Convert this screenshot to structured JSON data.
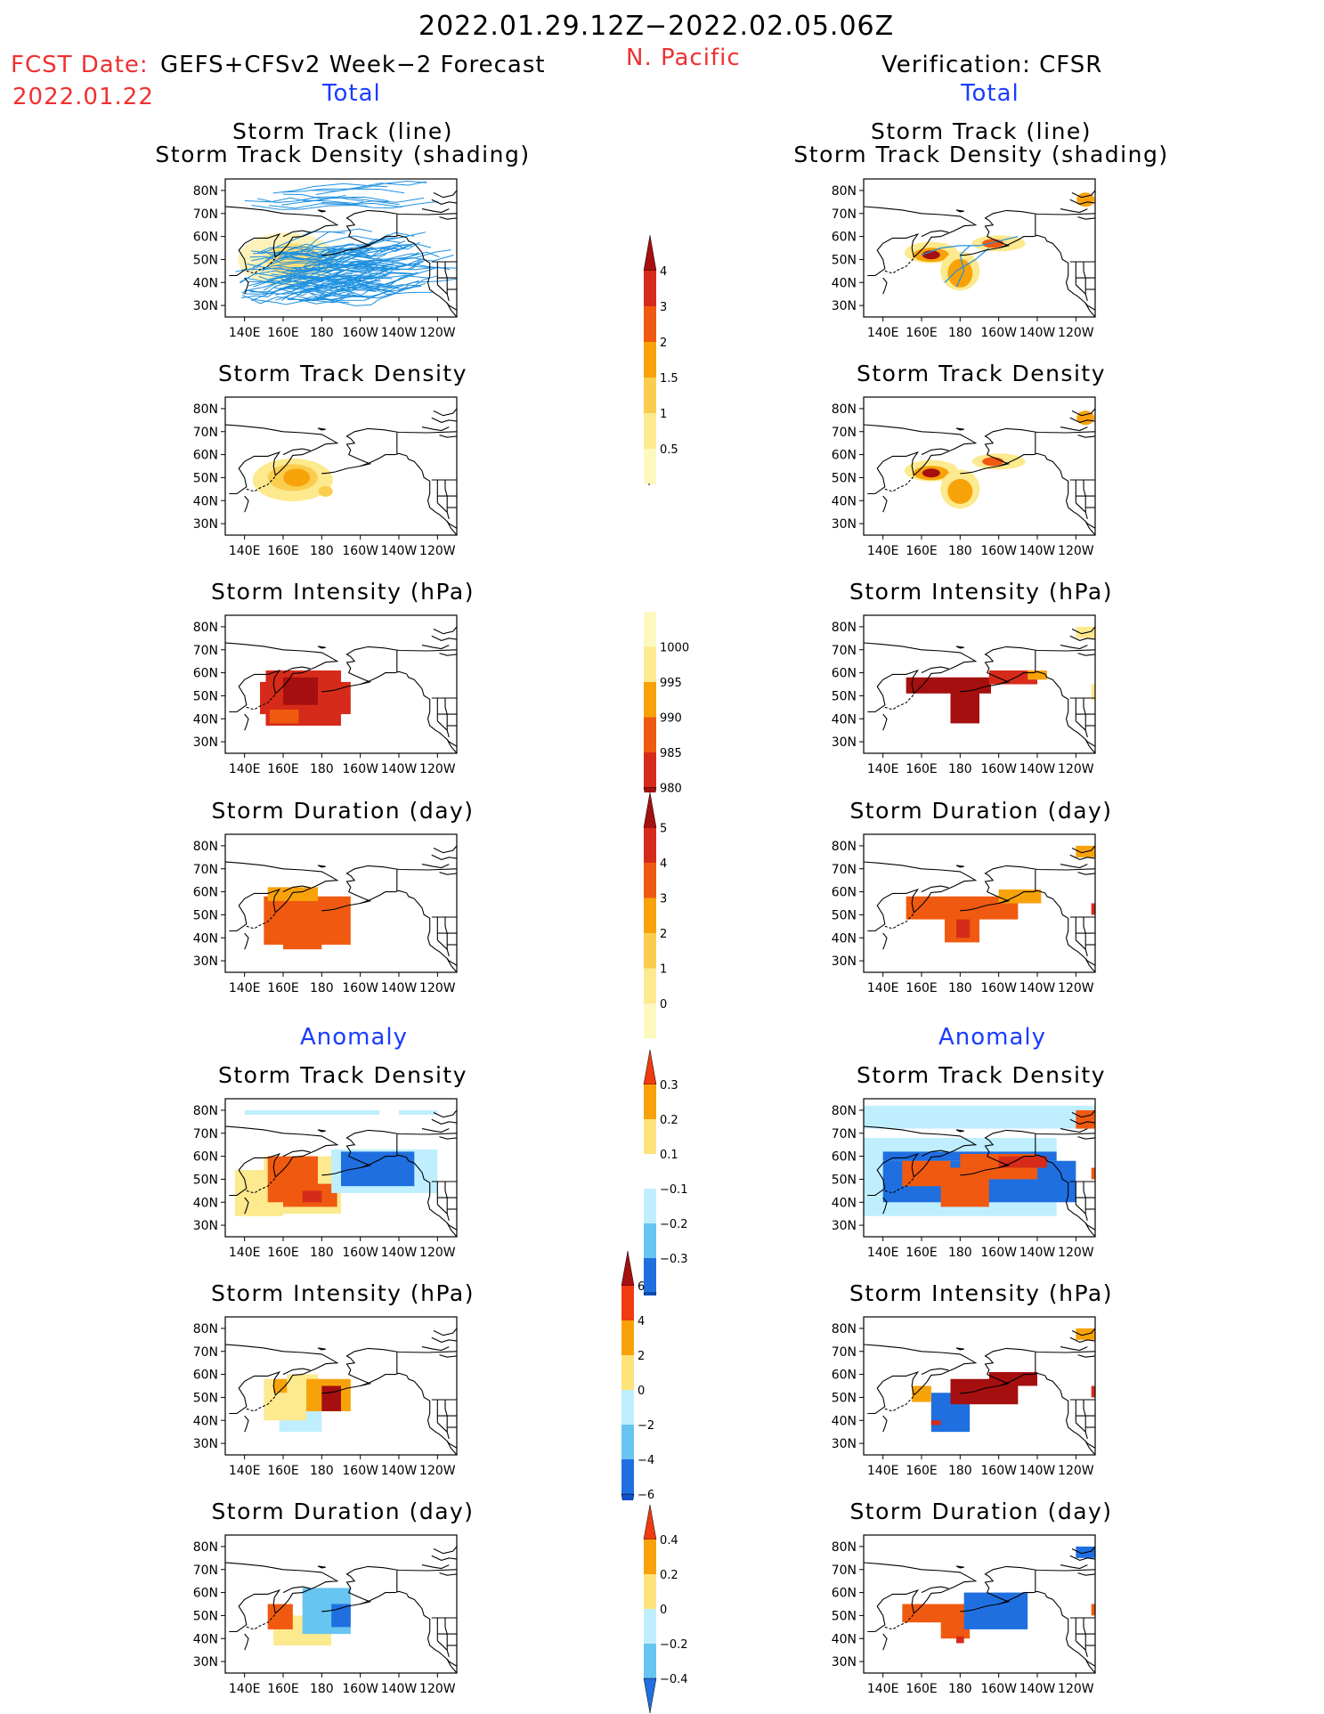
{
  "header": {
    "date_range": "2022.01.29.12Z−2022.02.05.06Z",
    "region": "N. Pacific",
    "fcst_label": "FCST Date:",
    "fcst_model": "GEFS+CFSv2 Week−2 Forecast",
    "fcst_date": "2022.01.22",
    "verification": "Verification: CFSR",
    "total_left": "Total",
    "total_right": "Total",
    "anomaly_left": "Anomaly",
    "anomaly_right": "Anomaly"
  },
  "panel_titles": {
    "track_line": "Storm Track (line)",
    "track_density_shading": "Storm Track Density (shading)",
    "track_density": "Storm Track Density",
    "intensity": "Storm Intensity (hPa)",
    "duration": "Storm Duration (day)"
  },
  "axes": {
    "lat_labels": [
      "80N",
      "70N",
      "60N",
      "50N",
      "40N",
      "30N"
    ],
    "lon_labels": [
      "140E",
      "160E",
      "180",
      "160W",
      "140W",
      "120W"
    ]
  },
  "colorbars": {
    "density_total": {
      "labels": [
        "4",
        "3",
        "2",
        "1.5",
        "1",
        "0.5"
      ],
      "colors": [
        "#a50f0f",
        "#d62b1a",
        "#f05a10",
        "#f8a20a",
        "#fbcd4e",
        "#fde98e",
        "#fdf8c0"
      ]
    },
    "intensity_total": {
      "labels": [
        "1000",
        "995",
        "990",
        "985",
        "980"
      ],
      "colors": [
        "#fdf8c0",
        "#fde98e",
        "#f8a20a",
        "#f05a10",
        "#d62b1a",
        "#a50f0f"
      ]
    },
    "duration_total": {
      "labels": [
        "5",
        "4",
        "3",
        "2",
        "1",
        "0"
      ],
      "colors": [
        "#a50f0f",
        "#d62b1a",
        "#f05a10",
        "#f8a20a",
        "#fbcd4e",
        "#fde98e",
        "#fdf8c0"
      ]
    },
    "density_anom": {
      "labels": [
        "0.3",
        "0.2",
        "0.1",
        "−0.1",
        "−0.2",
        "−0.3"
      ],
      "colors": [
        "#f03a10",
        "#f8a20a",
        "#fde37a",
        "#ffffff",
        "#bfefff",
        "#68c4f0",
        "#1f6fe0",
        "#1050c8"
      ]
    },
    "intensity_anom": {
      "labels": [
        "6",
        "4",
        "2",
        "0",
        "−2",
        "−4",
        "−6"
      ],
      "colors": [
        "#a50f0f",
        "#f03a10",
        "#f8a20a",
        "#fde37a",
        "#bfefff",
        "#68c4f0",
        "#1f6fe0",
        "#1050c8"
      ]
    },
    "duration_anom": {
      "labels": [
        "0.4",
        "0.2",
        "0",
        "−0.2",
        "−0.4"
      ],
      "colors": [
        "#f03a10",
        "#f8a20a",
        "#fde37a",
        "#bfefff",
        "#68c4f0",
        "#1f6fe0"
      ]
    }
  }
}
